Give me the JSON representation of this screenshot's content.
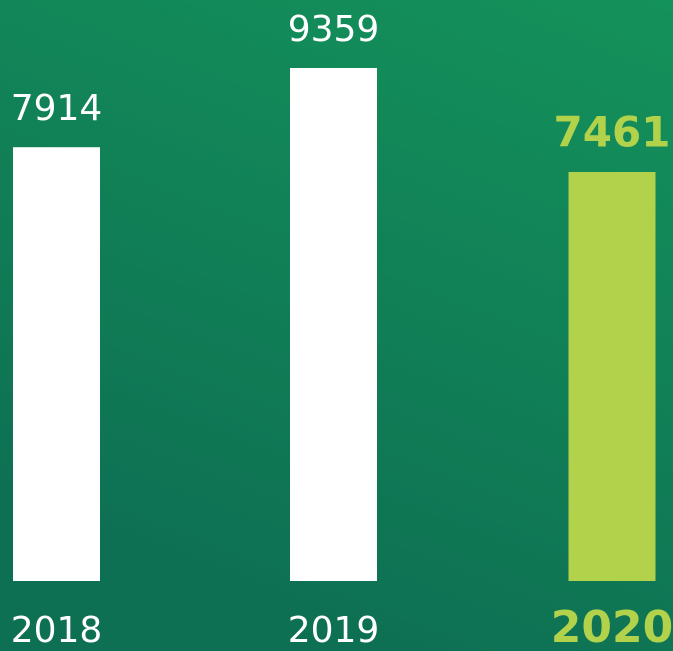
{
  "chart_data": {
    "type": "bar",
    "categories": [
      "2018",
      "2019",
      "2020"
    ],
    "values": [
      7914,
      9359,
      7461
    ],
    "colors": [
      "#ffffff",
      "#ffffff",
      "#b3d24c"
    ]
  }
}
